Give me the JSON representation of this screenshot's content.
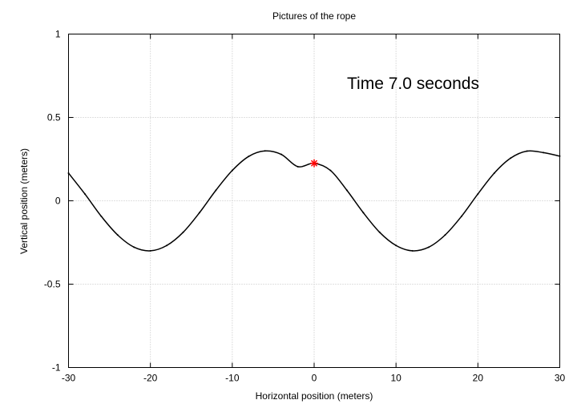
{
  "chart_data": {
    "type": "line",
    "title": "Pictures of the rope",
    "xlabel": "Horizontal position (meters)",
    "ylabel": "Vertical position (meters)",
    "xlim": [
      -30,
      30
    ],
    "ylim": [
      -1,
      1
    ],
    "x_ticks": [
      "-30",
      "-20",
      "-10",
      "0",
      "10",
      "20",
      "30"
    ],
    "y_ticks": [
      "1",
      "0.5",
      "0",
      "-0.5",
      "-1"
    ],
    "grid": true,
    "series": [
      {
        "color": "#000000",
        "x": [
          -30,
          -28,
          -26,
          -24,
          -22,
          -20,
          -18,
          -16,
          -14,
          -12,
          -10,
          -8,
          -6,
          -4,
          -2,
          0,
          2,
          4,
          6,
          8,
          10,
          12,
          14,
          16,
          18,
          20,
          22,
          24,
          26,
          28,
          30
        ],
        "y": [
          0.166,
          0.041,
          -0.093,
          -0.205,
          -0.278,
          -0.3,
          -0.268,
          -0.189,
          -0.071,
          0.063,
          0.182,
          0.266,
          0.299,
          0.278,
          0.205,
          0.225,
          0.182,
          0.063,
          -0.071,
          -0.189,
          -0.268,
          -0.3,
          -0.278,
          -0.205,
          -0.093,
          0.041,
          0.166,
          0.256,
          0.298,
          0.289,
          0.268
        ]
      }
    ],
    "marker": {
      "x": 0,
      "y": 0.225,
      "color": "#ff0000",
      "symbol": "asterisk"
    },
    "annotation": "Time  7.0 seconds"
  }
}
